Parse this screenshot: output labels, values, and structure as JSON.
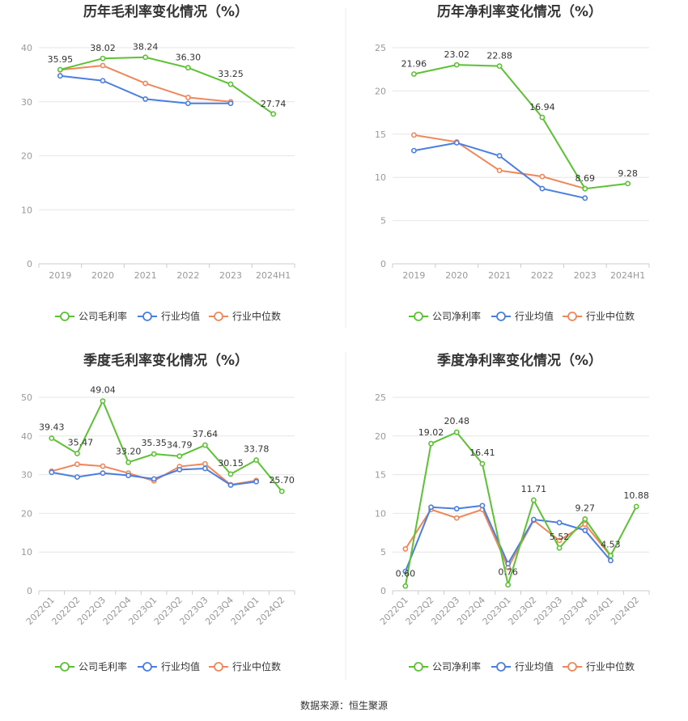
{
  "source": "数据来源：恒生聚源",
  "colors": {
    "company": "#5cc234",
    "avg": "#4a7ee0",
    "median": "#f0875a",
    "grid": "#e6e6e6",
    "axis": "#cccccc"
  },
  "legend_labels": {
    "gross": [
      "公司毛利率",
      "行业均值",
      "行业中位数"
    ],
    "net": [
      "公司净利率",
      "行业均值",
      "行业中位数"
    ]
  },
  "chart_data": [
    {
      "type": "line",
      "title": "历年毛利率变化情况（%）",
      "categories": [
        "2019",
        "2020",
        "2021",
        "2022",
        "2023",
        "2024H1"
      ],
      "ylim": [
        0,
        40
      ],
      "yticks": [
        0,
        10,
        20,
        30,
        40
      ],
      "grid": true,
      "legend": "bottom",
      "series": [
        {
          "name": "公司毛利率",
          "role": "company",
          "values": [
            35.95,
            38.02,
            38.24,
            36.3,
            33.25,
            27.74
          ],
          "labels": [
            "35.95",
            "38.02",
            "38.24",
            "36.30",
            "33.25",
            "27.74"
          ]
        },
        {
          "name": "行业均值",
          "role": "avg",
          "values": [
            34.8,
            33.9,
            30.5,
            29.7,
            29.7,
            null
          ]
        },
        {
          "name": "行业中位数",
          "role": "median",
          "values": [
            35.9,
            36.7,
            33.4,
            30.8,
            30.0,
            null
          ]
        }
      ]
    },
    {
      "type": "line",
      "title": "历年净利率变化情况（%）",
      "categories": [
        "2019",
        "2020",
        "2021",
        "2022",
        "2023",
        "2024H1"
      ],
      "ylim": [
        0,
        25
      ],
      "yticks": [
        0,
        5,
        10,
        15,
        20,
        25
      ],
      "grid": true,
      "legend": "bottom",
      "series": [
        {
          "name": "公司净利率",
          "role": "company",
          "values": [
            21.96,
            23.02,
            22.88,
            16.94,
            8.69,
            9.28
          ],
          "labels": [
            "21.96",
            "23.02",
            "22.88",
            "16.94",
            "8.69",
            "9.28"
          ]
        },
        {
          "name": "行业均值",
          "role": "avg",
          "values": [
            13.1,
            14.0,
            12.5,
            8.7,
            7.6,
            null
          ]
        },
        {
          "name": "行业中位数",
          "role": "median",
          "values": [
            14.9,
            14.1,
            10.8,
            10.1,
            8.7,
            null
          ]
        }
      ]
    },
    {
      "type": "line",
      "title": "季度毛利率变化情况（%）",
      "categories": [
        "2022Q1",
        "2022Q2",
        "2022Q3",
        "2022Q4",
        "2023Q1",
        "2023Q2",
        "2023Q3",
        "2023Q4",
        "2024Q1",
        "2024Q2"
      ],
      "ylim": [
        0,
        50
      ],
      "yticks": [
        0,
        10,
        20,
        30,
        40,
        50
      ],
      "grid": true,
      "legend": "bottom",
      "series": [
        {
          "name": "公司毛利率",
          "role": "company",
          "values": [
            39.43,
            35.47,
            49.04,
            33.2,
            35.35,
            34.79,
            37.64,
            30.15,
            33.78,
            25.7
          ],
          "labels": [
            "39.43",
            "35.47",
            "49.04",
            "33.20",
            "35.35",
            "34.79",
            "37.64",
            "30.15",
            "33.78",
            "25.70"
          ]
        },
        {
          "name": "行业均值",
          "role": "avg",
          "values": [
            30.6,
            29.4,
            30.4,
            29.8,
            28.9,
            31.3,
            31.6,
            27.3,
            28.2,
            null
          ]
        },
        {
          "name": "行业中位数",
          "role": "median",
          "values": [
            30.9,
            32.7,
            32.2,
            30.4,
            28.4,
            32.1,
            32.8,
            27.4,
            28.5,
            null
          ]
        }
      ]
    },
    {
      "type": "line",
      "title": "季度净利率变化情况（%）",
      "categories": [
        "2022Q1",
        "2022Q2",
        "2022Q3",
        "2022Q4",
        "2023Q1",
        "2023Q2",
        "2023Q3",
        "2023Q4",
        "2024Q1",
        "2024Q2"
      ],
      "ylim": [
        0,
        25
      ],
      "yticks": [
        0,
        5,
        10,
        15,
        20,
        25
      ],
      "grid": true,
      "legend": "bottom",
      "series": [
        {
          "name": "公司净利率",
          "role": "company",
          "values": [
            0.6,
            19.02,
            20.48,
            16.41,
            0.76,
            11.71,
            5.52,
            9.27,
            4.53,
            10.88
          ],
          "labels": [
            "0.60",
            "19.02",
            "20.48",
            "16.41",
            "0.76",
            "11.71",
            "5.52",
            "9.27",
            "4.53",
            "10.88"
          ]
        },
        {
          "name": "行业均值",
          "role": "avg",
          "values": [
            2.5,
            10.8,
            10.6,
            11.0,
            3.5,
            9.2,
            8.8,
            7.8,
            3.9,
            null
          ]
        },
        {
          "name": "行业中位数",
          "role": "median",
          "values": [
            5.4,
            10.5,
            9.4,
            10.5,
            3.0,
            9.1,
            6.5,
            8.6,
            4.5,
            null
          ]
        }
      ]
    }
  ]
}
